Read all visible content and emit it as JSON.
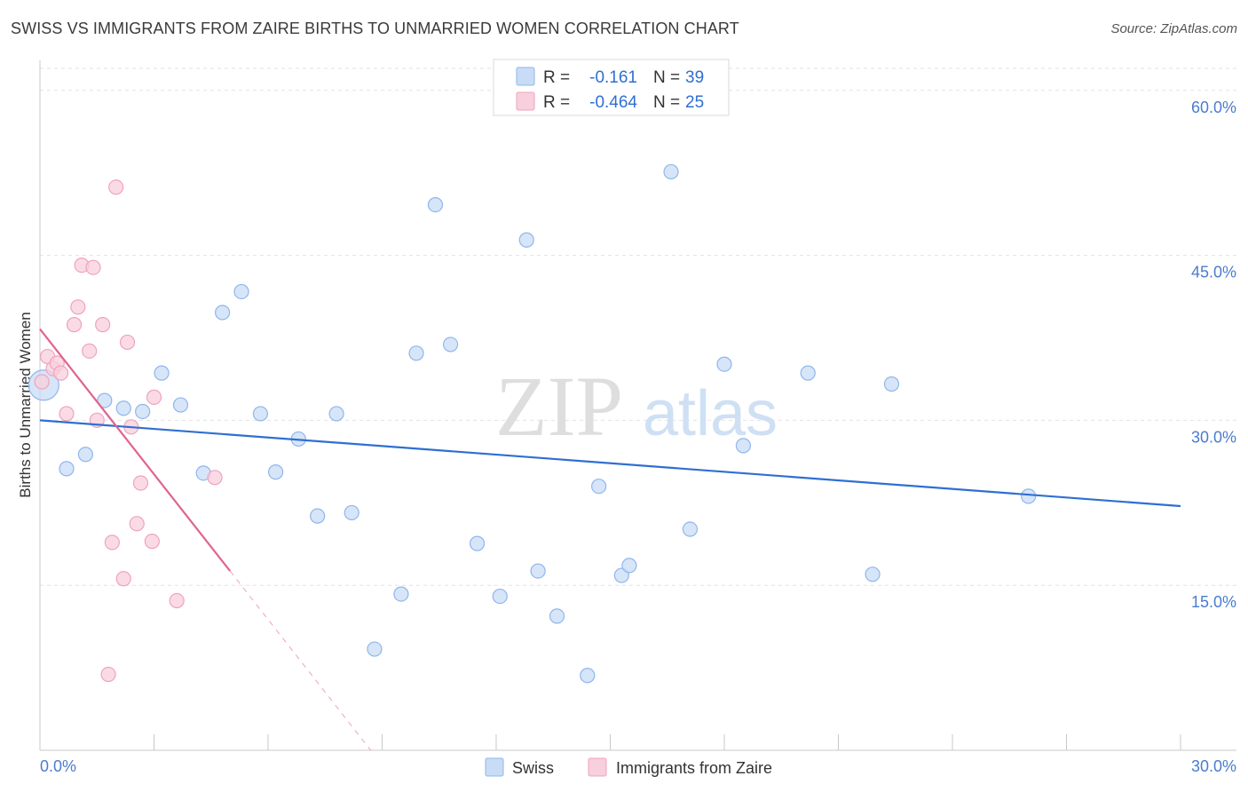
{
  "title": "SWISS VS IMMIGRANTS FROM ZAIRE BIRTHS TO UNMARRIED WOMEN CORRELATION CHART",
  "source": "Source: ZipAtlas.com",
  "watermark": {
    "zip": "ZIP",
    "atlas": "atlas"
  },
  "legend": {
    "rows": [
      {
        "r_label": "R = ",
        "r_value": "-0.161",
        "n_label": "N = ",
        "n_value": "39"
      },
      {
        "r_label": "R = ",
        "r_value": "-0.464",
        "n_label": "N = ",
        "n_value": "25"
      }
    ]
  },
  "chart_data": {
    "type": "scatter",
    "title": "SWISS VS IMMIGRANTS FROM ZAIRE BIRTHS TO UNMARRIED WOMEN CORRELATION CHART",
    "xlabel": "",
    "ylabel": "Births to Unmarried Women",
    "xlim": [
      0,
      30
    ],
    "ylim": [
      0,
      62
    ],
    "x_tick_labels": [
      "0.0%",
      "30.0%"
    ],
    "y_ticks": [
      15,
      30,
      45,
      60
    ],
    "y_tick_labels": [
      "15.0%",
      "30.0%",
      "45.0%",
      "60.0%"
    ],
    "grid": true,
    "series": [
      {
        "name": "Swiss",
        "color": "#8fb6ec",
        "fill": "#c9dcf6",
        "line_color": "#2f6fd1",
        "trend": {
          "x": [
            0,
            30
          ],
          "y": [
            30.0,
            22.2
          ]
        },
        "points": [
          {
            "x": 0.1,
            "y": 33.2,
            "big": true
          },
          {
            "x": 0.7,
            "y": 25.6
          },
          {
            "x": 1.2,
            "y": 26.9
          },
          {
            "x": 1.7,
            "y": 31.8
          },
          {
            "x": 2.2,
            "y": 31.1
          },
          {
            "x": 2.7,
            "y": 30.8
          },
          {
            "x": 3.2,
            "y": 34.3
          },
          {
            "x": 3.7,
            "y": 31.4
          },
          {
            "x": 4.3,
            "y": 25.2
          },
          {
            "x": 4.8,
            "y": 39.8
          },
          {
            "x": 5.3,
            "y": 41.7
          },
          {
            "x": 5.8,
            "y": 30.6
          },
          {
            "x": 6.2,
            "y": 25.3
          },
          {
            "x": 6.8,
            "y": 28.3
          },
          {
            "x": 7.3,
            "y": 21.3
          },
          {
            "x": 7.8,
            "y": 30.6
          },
          {
            "x": 8.2,
            "y": 21.6
          },
          {
            "x": 8.8,
            "y": 9.2
          },
          {
            "x": 9.5,
            "y": 14.2
          },
          {
            "x": 9.9,
            "y": 36.1
          },
          {
            "x": 10.4,
            "y": 49.6
          },
          {
            "x": 10.8,
            "y": 36.9
          },
          {
            "x": 11.5,
            "y": 18.8
          },
          {
            "x": 12.1,
            "y": 14.0
          },
          {
            "x": 12.8,
            "y": 46.4
          },
          {
            "x": 13.1,
            "y": 16.3
          },
          {
            "x": 13.6,
            "y": 12.2
          },
          {
            "x": 14.4,
            "y": 6.8
          },
          {
            "x": 14.7,
            "y": 24.0
          },
          {
            "x": 15.3,
            "y": 15.9
          },
          {
            "x": 15.5,
            "y": 16.8
          },
          {
            "x": 16.6,
            "y": 52.6
          },
          {
            "x": 17.1,
            "y": 20.1
          },
          {
            "x": 18.0,
            "y": 35.1
          },
          {
            "x": 18.5,
            "y": 27.7
          },
          {
            "x": 20.2,
            "y": 34.3
          },
          {
            "x": 21.9,
            "y": 16.0
          },
          {
            "x": 22.4,
            "y": 33.3
          },
          {
            "x": 26.0,
            "y": 23.1
          }
        ]
      },
      {
        "name": "Immigrants from Zaire",
        "color": "#f0a3bb",
        "fill": "#f8cfdc",
        "line_color": "#e0648f",
        "trend": {
          "x": [
            0,
            5.0
          ],
          "y": [
            38.3,
            16.3
          ]
        },
        "trend_dashed": {
          "x": [
            5.0,
            8.7
          ],
          "y": [
            16.3,
            0
          ]
        },
        "points": [
          {
            "x": 0.05,
            "y": 33.5
          },
          {
            "x": 0.2,
            "y": 35.8
          },
          {
            "x": 0.35,
            "y": 34.7
          },
          {
            "x": 0.45,
            "y": 35.2
          },
          {
            "x": 0.55,
            "y": 34.3
          },
          {
            "x": 0.7,
            "y": 30.6
          },
          {
            "x": 0.9,
            "y": 38.7
          },
          {
            "x": 1.0,
            "y": 40.3
          },
          {
            "x": 1.1,
            "y": 44.1
          },
          {
            "x": 1.3,
            "y": 36.3
          },
          {
            "x": 1.4,
            "y": 43.9
          },
          {
            "x": 1.5,
            "y": 30.0
          },
          {
            "x": 1.65,
            "y": 38.7
          },
          {
            "x": 1.8,
            "y": 6.9
          },
          {
            "x": 1.9,
            "y": 18.9
          },
          {
            "x": 2.0,
            "y": 51.2
          },
          {
            "x": 2.2,
            "y": 15.6
          },
          {
            "x": 2.3,
            "y": 37.1
          },
          {
            "x": 2.4,
            "y": 29.4
          },
          {
            "x": 2.55,
            "y": 20.6
          },
          {
            "x": 2.65,
            "y": 24.3
          },
          {
            "x": 2.95,
            "y": 19.0
          },
          {
            "x": 3.0,
            "y": 32.1
          },
          {
            "x": 3.6,
            "y": 13.6
          },
          {
            "x": 4.6,
            "y": 24.8
          }
        ]
      }
    ]
  }
}
